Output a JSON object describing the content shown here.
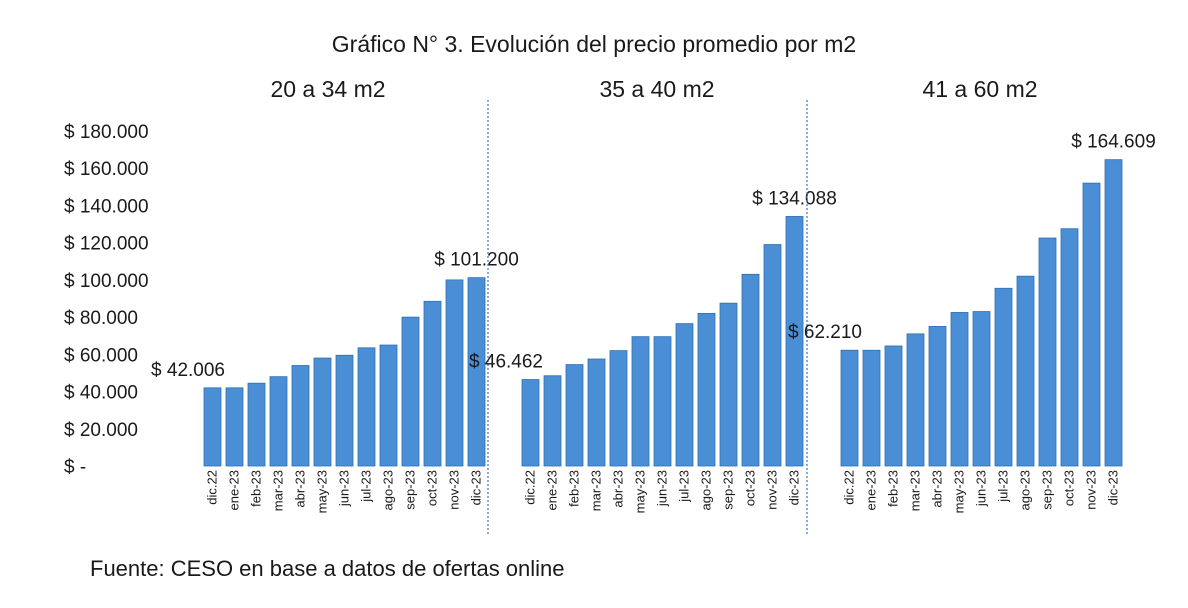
{
  "chart_data": {
    "type": "bar",
    "title": "Gráfico N° 3. Evolución del precio promedio por m2",
    "source": "Fuente: CESO en base a datos de ofertas online",
    "ylim": [
      0,
      180000
    ],
    "y_ticks": [
      {
        "value": 0,
        "label": "$ -"
      },
      {
        "value": 20000,
        "label": "$ 20.000"
      },
      {
        "value": 40000,
        "label": "$ 40.000"
      },
      {
        "value": 60000,
        "label": "$ 60.000"
      },
      {
        "value": 80000,
        "label": "$ 80.000"
      },
      {
        "value": 100000,
        "label": "$ 100.000"
      },
      {
        "value": 120000,
        "label": "$ 120.000"
      },
      {
        "value": 140000,
        "label": "$ 140.000"
      },
      {
        "value": 160000,
        "label": "$ 160.000"
      },
      {
        "value": 180000,
        "label": "$ 180.000"
      }
    ],
    "grid": false,
    "bar_color": "#4a8fd5",
    "bar_edge_color": "#2f6fb3",
    "divider_color": "#4a7fc0",
    "categories": [
      "dic.22",
      "ene-23",
      "feb-23",
      "mar-23",
      "abr-23",
      "may-23",
      "jun-23",
      "jul-23",
      "ago-23",
      "sep-23",
      "oct-23",
      "nov-23",
      "dic-23"
    ],
    "panels": [
      {
        "title": "20 a 34 m2",
        "values": [
          42006,
          42000,
          44500,
          48000,
          54000,
          58000,
          59500,
          63500,
          65000,
          80000,
          88500,
          100000,
          101200
        ],
        "annotations": [
          {
            "index": 0,
            "text": "$ 42.006"
          },
          {
            "index": 12,
            "text": "$ 101.200"
          }
        ]
      },
      {
        "title": "35 a 40 m2",
        "values": [
          46462,
          48500,
          54500,
          57500,
          62000,
          69500,
          69500,
          76500,
          82000,
          87500,
          103000,
          119000,
          134088
        ],
        "annotations": [
          {
            "index": 0,
            "text": "$ 46.462"
          },
          {
            "index": 12,
            "text": "$ 134.088"
          }
        ]
      },
      {
        "title": "41 a 60 m2",
        "values": [
          62210,
          62200,
          64500,
          71000,
          75000,
          82500,
          83000,
          95500,
          102000,
          122500,
          127500,
          152000,
          164609
        ],
        "annotations": [
          {
            "index": 0,
            "text": "$ 62.210"
          },
          {
            "index": 12,
            "text": "$ 164.609"
          }
        ]
      }
    ]
  }
}
